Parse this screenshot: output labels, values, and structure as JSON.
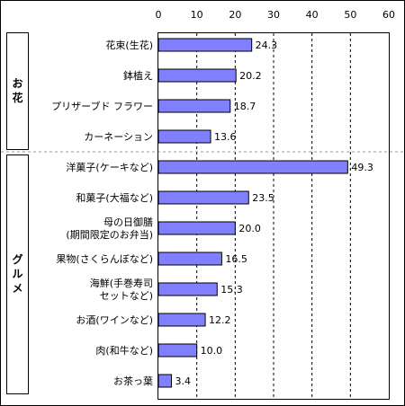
{
  "chart_data": {
    "type": "bar",
    "orientation": "horizontal",
    "xlim": [
      0,
      60
    ],
    "ticks": [
      "0",
      "10",
      "20",
      "30",
      "40",
      "50",
      "60"
    ],
    "grid": "vertical dashed",
    "bar_color": "#8080ff",
    "groups": [
      {
        "name": "お花",
        "items": [
          {
            "label": [
              "花束(生花)"
            ],
            "value": 24.3,
            "value_label": "24.3"
          },
          {
            "label": [
              "鉢植え"
            ],
            "value": 20.2,
            "value_label": "20.2"
          },
          {
            "label": [
              "プリザーブド フラワー"
            ],
            "value": 18.7,
            "value_label": "18.7"
          },
          {
            "label": [
              "カーネーション"
            ],
            "value": 13.6,
            "value_label": "13.6"
          }
        ]
      },
      {
        "name": "グルメ",
        "items": [
          {
            "label": [
              "洋菓子(ケーキなど)"
            ],
            "value": 49.3,
            "value_label": "49.3"
          },
          {
            "label": [
              "和菓子(大福など)"
            ],
            "value": 23.5,
            "value_label": "23.5"
          },
          {
            "label": [
              "母の日御膳",
              "(期間限定のお弁当)"
            ],
            "value": 20.0,
            "value_label": "20.0"
          },
          {
            "label": [
              "果物(さくらんぼなど)"
            ],
            "value": 16.5,
            "value_label": "16.5"
          },
          {
            "label": [
              "海鮮(手巻寿司",
              "セットなど)"
            ],
            "value": 15.3,
            "value_label": "15.3"
          },
          {
            "label": [
              "お酒(ワインなど)"
            ],
            "value": 12.2,
            "value_label": "12.2"
          },
          {
            "label": [
              "肉(和牛など)"
            ],
            "value": 10.0,
            "value_label": "10.0"
          },
          {
            "label": [
              "お茶っ葉"
            ],
            "value": 3.4,
            "value_label": "3.4"
          }
        ]
      }
    ]
  }
}
